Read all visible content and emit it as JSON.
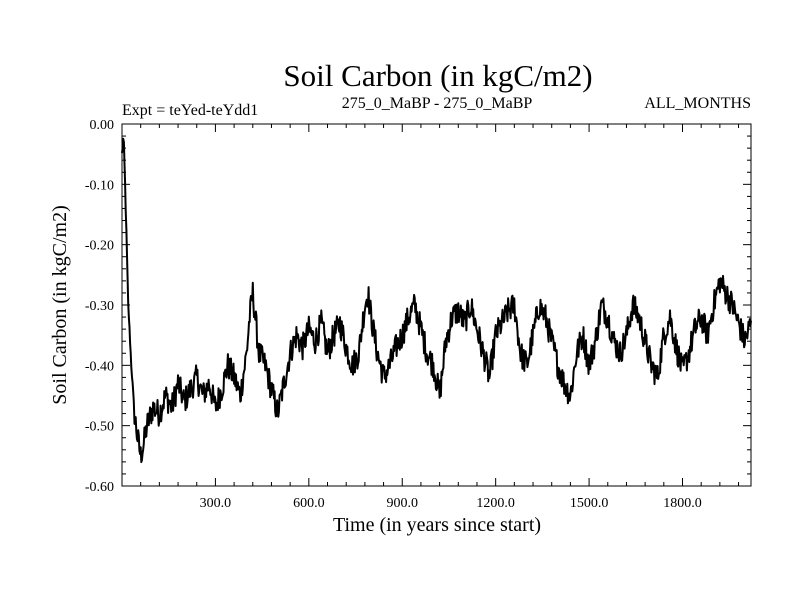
{
  "chart_data": {
    "type": "line",
    "title": "Soil Carbon (in kgC/m2)",
    "subtitle_left": "Expt = teYed-teYdd1",
    "subtitle_center": "275_0_MaBP - 275_0_MaBP",
    "subtitle_right": "ALL_MONTHS",
    "xlabel": "Time (in years since start)",
    "ylabel": "Soil Carbon (in kgC/m2)",
    "xlim": [
      0,
      2020
    ],
    "ylim": [
      -0.6,
      0.0
    ],
    "xticks": [
      300,
      600,
      900,
      1200,
      1500,
      1800
    ],
    "xtick_labels": [
      "300.0",
      "600.0",
      "900.0",
      "1200.0",
      "1500.0",
      "1800.0"
    ],
    "yticks": [
      0.0,
      -0.1,
      -0.2,
      -0.3,
      -0.4,
      -0.5,
      -0.6
    ],
    "ytick_labels": [
      "0.00",
      "-0.10",
      "-0.20",
      "-0.30",
      "-0.40",
      "-0.50",
      "-0.60"
    ],
    "grid": false,
    "series": [
      {
        "name": "Soil Carbon",
        "color": "#000000",
        "x": [
          0,
          5,
          10,
          15,
          20,
          30,
          40,
          50,
          60,
          70,
          80,
          100,
          120,
          140,
          160,
          180,
          200,
          220,
          240,
          260,
          280,
          300,
          320,
          340,
          360,
          380,
          400,
          410,
          420,
          430,
          440,
          460,
          480,
          500,
          520,
          540,
          560,
          580,
          600,
          620,
          640,
          660,
          680,
          700,
          720,
          740,
          760,
          780,
          790,
          800,
          820,
          840,
          860,
          880,
          900,
          920,
          940,
          960,
          980,
          1000,
          1020,
          1040,
          1060,
          1080,
          1100,
          1120,
          1140,
          1160,
          1180,
          1200,
          1220,
          1240,
          1260,
          1280,
          1300,
          1320,
          1340,
          1360,
          1380,
          1400,
          1420,
          1440,
          1460,
          1480,
          1500,
          1520,
          1540,
          1560,
          1580,
          1600,
          1620,
          1640,
          1660,
          1680,
          1700,
          1720,
          1740,
          1760,
          1780,
          1800,
          1820,
          1840,
          1860,
          1880,
          1900,
          1920,
          1940,
          1960,
          1980,
          2000,
          2020
        ],
        "y": [
          -0.05,
          -0.02,
          -0.1,
          -0.2,
          -0.3,
          -0.4,
          -0.48,
          -0.52,
          -0.55,
          -0.53,
          -0.5,
          -0.47,
          -0.48,
          -0.45,
          -0.47,
          -0.43,
          -0.46,
          -0.44,
          -0.42,
          -0.45,
          -0.43,
          -0.47,
          -0.44,
          -0.4,
          -0.42,
          -0.45,
          -0.38,
          -0.32,
          -0.28,
          -0.33,
          -0.38,
          -0.4,
          -0.44,
          -0.48,
          -0.43,
          -0.38,
          -0.35,
          -0.37,
          -0.34,
          -0.36,
          -0.33,
          -0.38,
          -0.35,
          -0.33,
          -0.37,
          -0.4,
          -0.38,
          -0.3,
          -0.28,
          -0.32,
          -0.38,
          -0.42,
          -0.4,
          -0.37,
          -0.35,
          -0.32,
          -0.3,
          -0.34,
          -0.38,
          -0.4,
          -0.45,
          -0.36,
          -0.32,
          -0.31,
          -0.33,
          -0.3,
          -0.34,
          -0.38,
          -0.42,
          -0.35,
          -0.33,
          -0.31,
          -0.3,
          -0.38,
          -0.4,
          -0.35,
          -0.3,
          -0.32,
          -0.36,
          -0.4,
          -0.43,
          -0.45,
          -0.38,
          -0.35,
          -0.4,
          -0.36,
          -0.3,
          -0.32,
          -0.36,
          -0.38,
          -0.35,
          -0.3,
          -0.32,
          -0.36,
          -0.4,
          -0.42,
          -0.35,
          -0.32,
          -0.37,
          -0.41,
          -0.38,
          -0.34,
          -0.32,
          -0.35,
          -0.3,
          -0.26,
          -0.28,
          -0.3,
          -0.33,
          -0.36,
          -0.33
        ]
      }
    ]
  }
}
